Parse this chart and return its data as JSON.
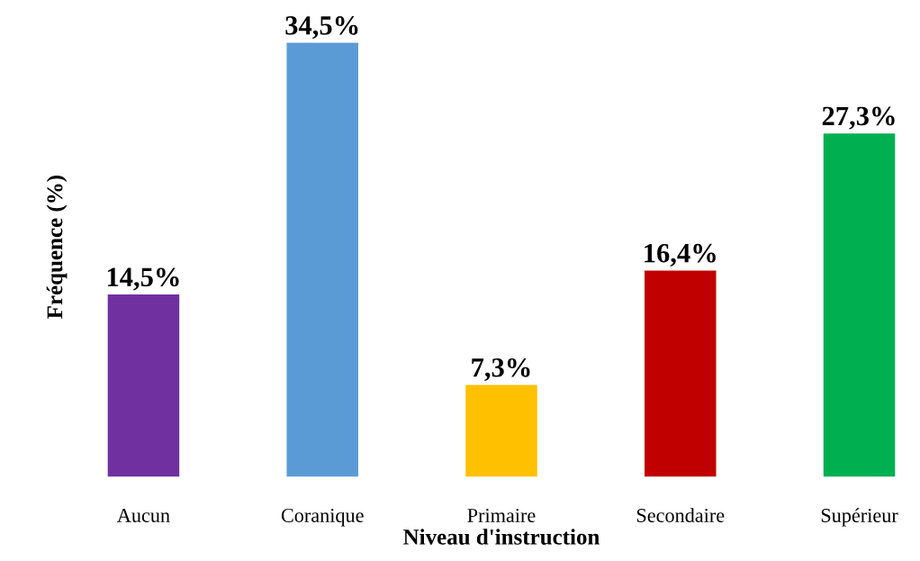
{
  "chart_data": {
    "type": "bar",
    "xlabel": "Niveau d'instruction",
    "ylabel": "Fréquence (%)",
    "categories": [
      "Aucun",
      "Coranique",
      "Primaire",
      "Secondaire",
      "Supérieur"
    ],
    "values": [
      14.5,
      34.5,
      7.3,
      16.4,
      27.3
    ],
    "value_labels": [
      "14,5%",
      "34,5%",
      "7,3%",
      "16,4%",
      "27,3%"
    ],
    "colors": [
      "#7030a0",
      "#5b9bd5",
      "#ffc000",
      "#c00000",
      "#00b050"
    ],
    "grid": false,
    "legend": false
  }
}
